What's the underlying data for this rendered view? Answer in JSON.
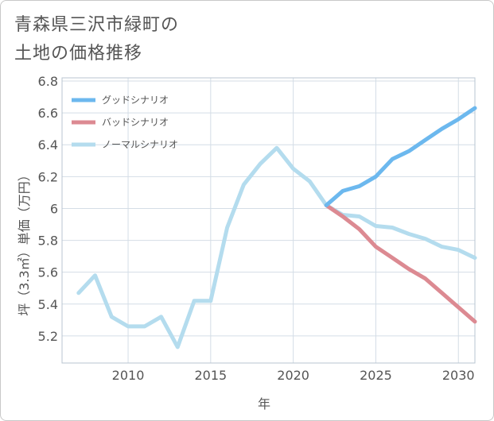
{
  "title": {
    "line1": "青森県三沢市緑町の",
    "line2": "土地の価格推移"
  },
  "chart_data": {
    "type": "line",
    "title": "青森県三沢市緑町の土地の価格推移",
    "xlabel": "年",
    "ylabel": "坪（3.3㎡）単価（万円）",
    "xlim": [
      2006,
      2031
    ],
    "ylim": [
      5.03,
      6.82
    ],
    "x_ticks": [
      2010,
      2015,
      2020,
      2025,
      2030
    ],
    "y_ticks": [
      5.2,
      5.4,
      5.6,
      5.8,
      6,
      6.2,
      6.4,
      6.6,
      6.8
    ],
    "grid": true,
    "legend_position": "top-left",
    "series": [
      {
        "name": "グッドシナリオ",
        "color": "#6cb8ee",
        "x": [
          2022,
          2023,
          2024,
          2025,
          2026,
          2027,
          2028,
          2029,
          2030,
          2031
        ],
        "values": [
          6.02,
          6.11,
          6.14,
          6.2,
          6.31,
          6.36,
          6.43,
          6.5,
          6.56,
          6.63
        ]
      },
      {
        "name": "バッドシナリオ",
        "color": "#dc8a92",
        "x": [
          2022,
          2023,
          2024,
          2025,
          2026,
          2027,
          2028,
          2029,
          2030,
          2031
        ],
        "values": [
          6.02,
          5.95,
          5.87,
          5.76,
          5.69,
          5.62,
          5.56,
          5.47,
          5.38,
          5.29
        ]
      },
      {
        "name": "ノーマルシナリオ",
        "color": "#b4dcee",
        "x": [
          2007,
          2008,
          2009,
          2010,
          2011,
          2012,
          2013,
          2014,
          2015,
          2016,
          2017,
          2018,
          2019,
          2020,
          2021,
          2022,
          2023,
          2024,
          2025,
          2026,
          2027,
          2028,
          2029,
          2030,
          2031
        ],
        "values": [
          5.47,
          5.58,
          5.32,
          5.26,
          5.26,
          5.32,
          5.13,
          5.42,
          5.42,
          5.88,
          6.15,
          6.28,
          6.38,
          6.25,
          6.17,
          6.02,
          5.96,
          5.95,
          5.89,
          5.88,
          5.84,
          5.81,
          5.76,
          5.74,
          5.69
        ]
      }
    ]
  }
}
